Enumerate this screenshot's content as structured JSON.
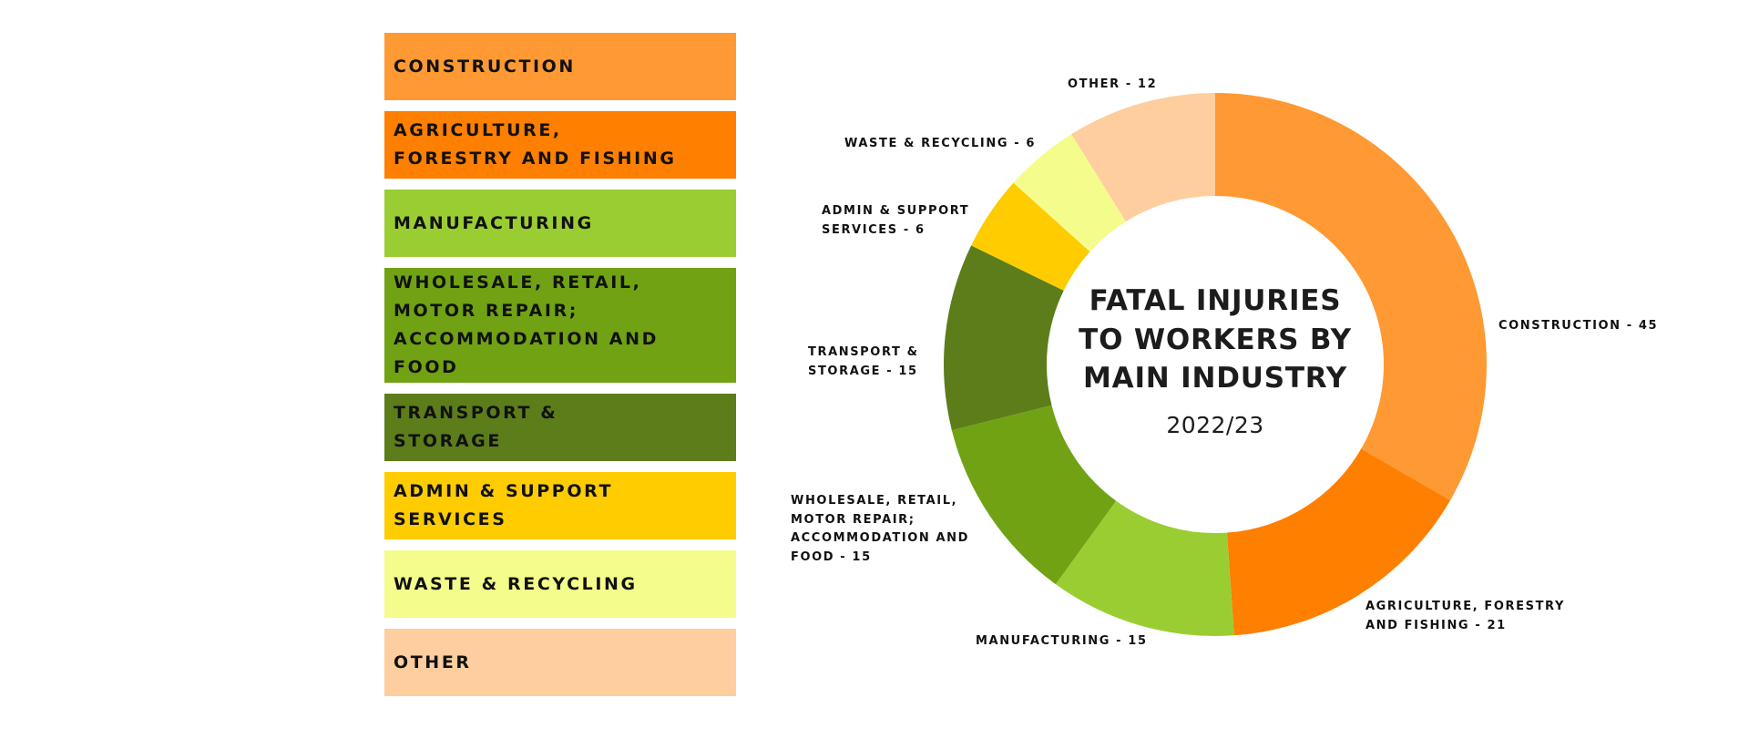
{
  "chart_data": {
    "type": "pie",
    "subtype": "donut",
    "title": "FATAL INJURIES TO WORKERS BY MAIN INDUSTRY",
    "subtitle": "2022/23",
    "categories": [
      "CONSTRUCTION",
      "AGRICULTURE, FORESTRY AND FISHING",
      "MANUFACTURING",
      "WHOLESALE, RETAIL, MOTOR REPAIR; ACCOMMODATION AND FOOD",
      "TRANSPORT & STORAGE",
      "ADMIN & SUPPORT SERVICES",
      "WASTE & RECYCLING",
      "OTHER"
    ],
    "values": [
      45,
      21,
      15,
      15,
      15,
      6,
      6,
      12
    ],
    "colors": [
      "#FF9933",
      "#FF7F00",
      "#9ACD32",
      "#70A213",
      "#5C7D1A",
      "#FFCC00",
      "#F4FC8C",
      "#FECE9E"
    ],
    "legend_position": "left",
    "start_angle_deg": 0,
    "direction": "clockwise"
  },
  "legend": {
    "items": [
      {
        "label": "CONSTRUCTION",
        "color": "#FF9933"
      },
      {
        "label": "AGRICULTURE,\nFORESTRY AND FISHING",
        "color": "#FF7F00"
      },
      {
        "label": "MANUFACTURING",
        "color": "#9ACD32"
      },
      {
        "label": "WHOLESALE, RETAIL,\nMOTOR REPAIR;\nACCOMMODATION AND\nFOOD",
        "color": "#70A213"
      },
      {
        "label": "TRANSPORT &\nSTORAGE",
        "color": "#5C7D1A"
      },
      {
        "label": "ADMIN & SUPPORT\nSERVICES",
        "color": "#FFCC00"
      },
      {
        "label": "WASTE & RECYCLING",
        "color": "#F4FC8C"
      },
      {
        "label": "OTHER",
        "color": "#FECE9E"
      }
    ]
  },
  "slice_labels": [
    {
      "text": "CONSTRUCTION - 45"
    },
    {
      "text": "AGRICULTURE, FORESTRY\nAND FISHING - 21"
    },
    {
      "text": "MANUFACTURING - 15"
    },
    {
      "text": "WHOLESALE, RETAIL,\nMOTOR REPAIR;\nACCOMMODATION AND\nFOOD - 15"
    },
    {
      "text": "TRANSPORT &\nSTORAGE - 15"
    },
    {
      "text": "ADMIN & SUPPORT\nSERVICES - 6"
    },
    {
      "text": "WASTE & RECYCLING - 6"
    },
    {
      "text": "OTHER - 12"
    }
  ],
  "center": {
    "title": "FATAL INJURIES\nTO WORKERS BY\nMAIN INDUSTRY",
    "year": "2022/23"
  }
}
